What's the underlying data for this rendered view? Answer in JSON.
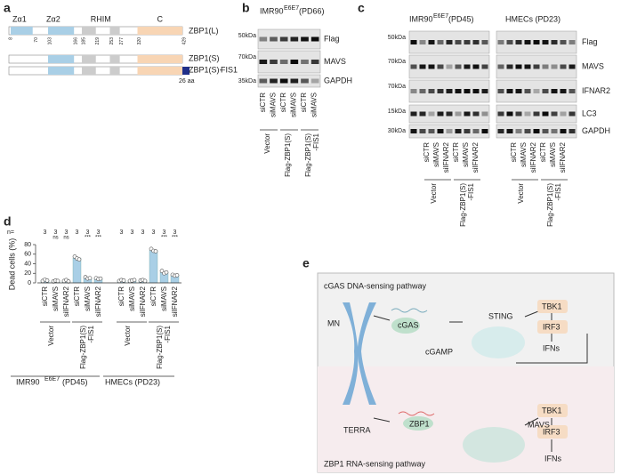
{
  "panel_labels": [
    "a",
    "b",
    "c",
    "d",
    "e"
  ],
  "a": {
    "domains": [
      "Zα1",
      "Zα2",
      "RHIM",
      "C"
    ],
    "positions": [
      8,
      70,
      103,
      166,
      185,
      219,
      253,
      277,
      320,
      429
    ],
    "constructs": [
      "ZBP1(L)",
      "ZBP1(S)",
      "ZBP1(S)-"
    ],
    "fis1": "FIS1",
    "tag": "26 aa"
  },
  "b": {
    "cell": "IMR90",
    "sup": "E6E7",
    "pd": "(PD66)",
    "markers": [
      "50kDa",
      "70kDa",
      "35kDa"
    ],
    "proteins": [
      "Flag",
      "MAVS",
      "GAPDH"
    ],
    "lanes": [
      "siCTR",
      "siMAVS",
      "siCTR",
      "siMAVS",
      "siCTR",
      "siMAVS"
    ],
    "groups": [
      [
        "Vector"
      ],
      [
        "Flag-ZBP1(S)"
      ],
      [
        "Flag-ZBP1(S)",
        "-FIS1"
      ]
    ]
  },
  "c": {
    "markers": [
      "50kDa",
      "70kDa",
      "70kDa",
      "15kDa",
      "30kDa"
    ],
    "proteins": [
      "Flag",
      "MAVS",
      "IFNAR2",
      "LC3",
      "GAPDH"
    ],
    "blots": [
      {
        "cell": "IMR90",
        "sup": "E6E7",
        "pd": "(PD45)",
        "lanes": [
          "siCTR",
          "siMAVS",
          "siIFNAR2",
          "siCTR",
          "siMAVS",
          "siIFNAR2"
        ],
        "groups": [
          [
            "Vector"
          ],
          [
            "Flag-ZBP1(S)",
            "-FIS1"
          ]
        ]
      },
      {
        "cell": "HMECs (PD23)",
        "lanes": [
          "siCTR",
          "siMAVS",
          "siIFNAR2",
          "siCTR",
          "siMAVS",
          "siIFNAR2"
        ],
        "groups": [
          [
            "Vector"
          ],
          [
            "Flag-ZBP1(S)",
            "-FIS1"
          ]
        ]
      }
    ]
  },
  "chart_data": {
    "type": "bar",
    "ylabel": "Dead cells (%)",
    "color": "#a9cfe6",
    "categories": [
      "siCTR",
      "siMAVS",
      "siIFNAR2",
      "siCTR",
      "siMAVS",
      "siIFNAR2",
      "siCTR",
      "siMAVS",
      "siIFNAR2",
      "siCTR",
      "siMAVS",
      "siIFNAR2"
    ],
    "values": [
      5,
      4,
      4,
      52,
      10,
      9,
      5,
      5,
      5,
      68,
      22,
      16
    ],
    "points": [
      [
        4,
        7,
        5
      ],
      [
        3,
        5,
        4
      ],
      [
        4,
        6,
        3
      ],
      [
        55,
        51,
        49
      ],
      [
        12,
        9,
        10
      ],
      [
        10,
        8,
        9
      ],
      [
        4,
        6,
        5
      ],
      [
        4,
        5,
        6
      ],
      [
        5,
        6,
        4
      ],
      [
        71,
        67,
        66
      ],
      [
        25,
        20,
        22
      ],
      [
        17,
        15,
        16
      ]
    ],
    "n_label": "n=",
    "n": [
      3,
      3,
      3,
      3,
      3,
      3,
      3,
      3,
      3,
      3,
      3,
      3
    ],
    "significance": [
      null,
      "ns",
      "ns",
      null,
      "***",
      "***",
      null,
      null,
      null,
      null,
      "***",
      "***"
    ],
    "groups": [
      [
        "Vector"
      ],
      [
        "Flag-ZBP1(S)",
        "-FIS1"
      ],
      [
        "Vector"
      ],
      [
        "Flag-ZBP1(S)",
        "-FIS1"
      ]
    ],
    "cell_lines": [
      {
        "name": "IMR90",
        "sup": "E6E7",
        "pd": "(PD45)"
      },
      {
        "name": "HMECs (PD23)"
      }
    ],
    "ylim": [
      0,
      80
    ],
    "yticks": [
      0,
      20,
      40,
      60,
      80
    ]
  },
  "e": {
    "top_title": "cGAS DNA-sensing pathway",
    "bottom_title": "ZBP1 RNA-sensing pathway",
    "mn": "MN",
    "cgas": "cGAS",
    "cgamp": "cGAMP",
    "sting": "STING",
    "terra": "TERRA",
    "zbp1": "ZBP1",
    "mavs": "MAVS",
    "tbk1": "TBK1",
    "irf3": "IRF3",
    "ifns": "IFNs"
  }
}
